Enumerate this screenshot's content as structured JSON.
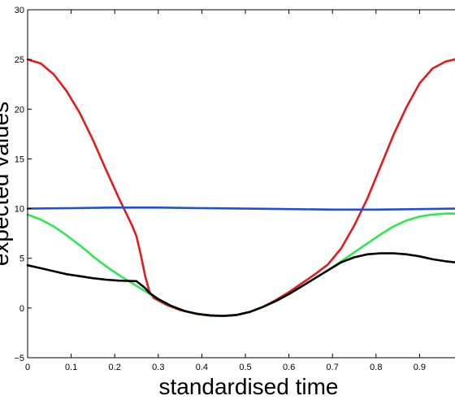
{
  "chart_data": {
    "type": "line",
    "title": "",
    "xlabel": "standardised time",
    "ylabel": "expected values",
    "xlim": [
      0,
      1
    ],
    "ylim": [
      -5,
      30
    ],
    "grid": false,
    "legend": "none",
    "xticks": [
      0,
      0.1,
      0.2,
      0.3,
      0.4,
      0.5,
      0.6,
      0.7,
      0.8,
      0.9
    ],
    "xtick_labels": [
      "0",
      "0.1",
      "0.2",
      "0.3",
      "0.4",
      "0.5",
      "0.6",
      "0.7",
      "0.8",
      "0.9"
    ],
    "yticks": [
      -5,
      0,
      5,
      10,
      15,
      20,
      25,
      30
    ],
    "ytick_labels": [
      "−5",
      "0",
      "5",
      "10",
      "15",
      "20",
      "25",
      "30"
    ],
    "series": [
      {
        "color": "#e41a1c",
        "x": [
          0,
          0.03,
          0.06,
          0.09,
          0.12,
          0.15,
          0.18,
          0.21,
          0.24,
          0.25,
          0.26,
          0.27,
          0.28,
          0.29,
          0.32,
          0.35,
          0.38,
          0.41,
          0.44,
          0.45,
          0.48,
          0.51,
          0.54,
          0.57,
          0.6,
          0.63,
          0.66,
          0.69,
          0.72,
          0.75,
          0.78,
          0.81,
          0.84,
          0.87,
          0.9,
          0.93,
          0.96,
          0.98
        ],
        "y": [
          25.0,
          24.6,
          23.5,
          21.8,
          19.6,
          16.9,
          13.9,
          11.0,
          8.3,
          7.2,
          5.3,
          3.2,
          1.6,
          1.0,
          0.3,
          -0.2,
          -0.5,
          -0.7,
          -0.8,
          -0.8,
          -0.7,
          -0.4,
          0.1,
          0.8,
          1.6,
          2.5,
          3.4,
          4.4,
          6.0,
          8.3,
          11.0,
          14.2,
          17.4,
          20.2,
          22.6,
          24.1,
          24.8,
          25.0
        ]
      },
      {
        "color": "#1f4fd8",
        "x": [
          0,
          0.1,
          0.2,
          0.3,
          0.4,
          0.5,
          0.6,
          0.7,
          0.8,
          0.9,
          0.98
        ],
        "y": [
          10.0,
          10.05,
          10.1,
          10.1,
          10.05,
          10.0,
          9.95,
          9.9,
          9.9,
          9.95,
          10.0
        ]
      },
      {
        "color": "#2ee84f",
        "x": [
          0,
          0.03,
          0.06,
          0.09,
          0.12,
          0.15,
          0.18,
          0.21,
          0.24,
          0.27,
          0.3,
          0.33,
          0.36,
          0.39,
          0.42,
          0.45,
          0.48,
          0.51,
          0.54,
          0.57,
          0.6,
          0.63,
          0.66,
          0.69,
          0.72,
          0.75,
          0.78,
          0.81,
          0.84,
          0.87,
          0.9,
          0.93,
          0.96,
          0.98
        ],
        "y": [
          9.4,
          8.9,
          8.2,
          7.3,
          6.3,
          5.2,
          4.2,
          3.3,
          2.5,
          1.7,
          0.9,
          0.2,
          -0.3,
          -0.6,
          -0.8,
          -0.8,
          -0.7,
          -0.4,
          0.1,
          0.7,
          1.4,
          2.2,
          3.0,
          3.8,
          4.7,
          5.6,
          6.5,
          7.4,
          8.2,
          8.8,
          9.2,
          9.4,
          9.5,
          9.5
        ]
      },
      {
        "color": "#000000",
        "x": [
          0,
          0.03,
          0.06,
          0.09,
          0.12,
          0.15,
          0.18,
          0.21,
          0.25,
          0.27,
          0.28,
          0.3,
          0.33,
          0.36,
          0.39,
          0.42,
          0.45,
          0.48,
          0.51,
          0.54,
          0.57,
          0.6,
          0.63,
          0.66,
          0.69,
          0.72,
          0.75,
          0.78,
          0.81,
          0.84,
          0.87,
          0.9,
          0.93,
          0.96,
          0.98
        ],
        "y": [
          4.3,
          4.0,
          3.7,
          3.4,
          3.2,
          3.0,
          2.85,
          2.75,
          2.7,
          2.0,
          1.5,
          0.9,
          0.2,
          -0.3,
          -0.6,
          -0.75,
          -0.8,
          -0.7,
          -0.4,
          0.1,
          0.7,
          1.4,
          2.2,
          3.0,
          3.8,
          4.6,
          5.1,
          5.4,
          5.5,
          5.5,
          5.4,
          5.2,
          4.9,
          4.7,
          4.6
        ]
      }
    ]
  }
}
